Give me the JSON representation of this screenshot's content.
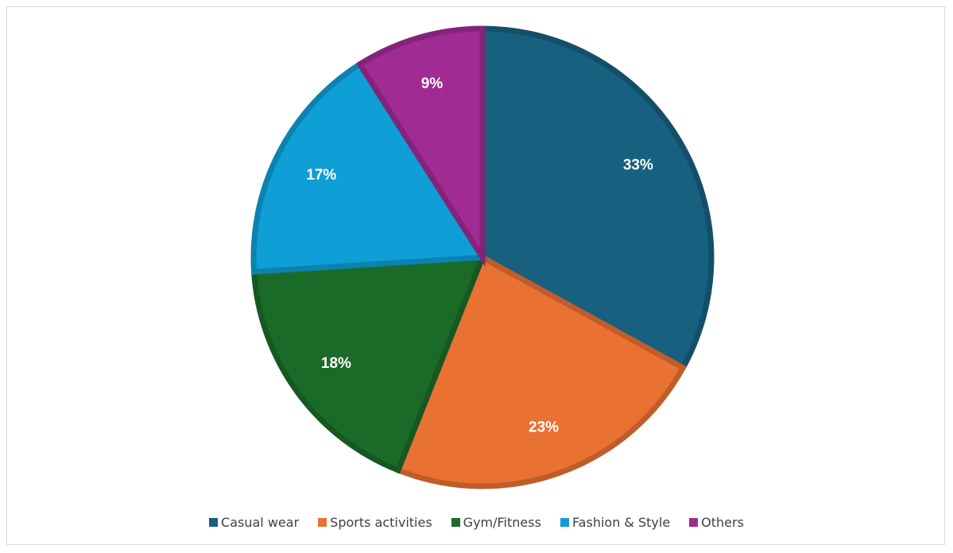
{
  "chart_data": {
    "type": "pie",
    "title": "",
    "categories": [
      "Casual wear",
      "Sports activities",
      "Gym/Fitness",
      "Fashion & Style",
      "Others"
    ],
    "values": [
      33,
      23,
      18,
      17,
      9
    ],
    "labels": [
      "33%",
      "23%",
      "18%",
      "17%",
      "9%"
    ],
    "colors": [
      "#17607f",
      "#e97132",
      "#1b6b28",
      "#0f9ed5",
      "#a02b93"
    ],
    "legend_position": "bottom",
    "start_angle": "12 o'clock",
    "direction": "clockwise"
  },
  "legend": [
    {
      "label": "Casual wear",
      "color": "#17607f"
    },
    {
      "label": "Sports activities",
      "color": "#e97132"
    },
    {
      "label": "Gym/Fitness",
      "color": "#1b6b28"
    },
    {
      "label": "Fashion & Style",
      "color": "#0f9ed5"
    },
    {
      "label": "Others",
      "color": "#a02b93"
    }
  ]
}
